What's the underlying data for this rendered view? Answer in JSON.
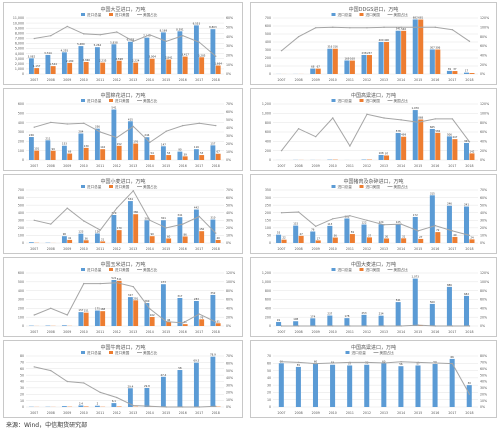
{
  "colors": {
    "bar_a": "#5b9bd5",
    "bar_b": "#ed7d31",
    "line": "#a5a5a5",
    "grid": "#e3e3e3",
    "text": "#555555"
  },
  "footer": {
    "text": "来源：Wind，中信期货研究部"
  },
  "chart_data": [
    {
      "type": "bar",
      "title": "中国大豆进口，万吨",
      "legend": [
        "进口总量",
        "进口美国",
        "美国占比"
      ],
      "categories": [
        "2007",
        "2008",
        "2009",
        "2010",
        "2011",
        "2012",
        "2013",
        "2014",
        "2015",
        "2016",
        "2017",
        "2018"
      ],
      "y_ticks": [
        "0",
        "1,000",
        "2,000",
        "3,000",
        "4,000",
        "5,000",
        "6,000",
        "7,000",
        "8,000",
        "9,000",
        "10,000",
        "11,000"
      ],
      "y2_ticks": [
        "0%",
        "10%",
        "20%",
        "30%",
        "40%",
        "50%",
        "60%"
      ],
      "ylim": [
        0,
        11000
      ],
      "y2lim": [
        0,
        0.6
      ],
      "series": [
        {
          "name": "进口总量",
          "values": [
            3082,
            3744,
            4255,
            5480,
            5264,
            5838,
            6338,
            7140,
            8169,
            8391,
            9553,
            8803
          ]
        },
        {
          "name": "进口美国",
          "values": [
            1157,
            1544,
            2180,
            2360,
            2235,
            2598,
            2224,
            3004,
            2841,
            3417,
            3285,
            1664
          ]
        },
        {
          "name": "美国占比",
          "values": [
            0.38,
            0.41,
            0.51,
            0.43,
            0.42,
            0.45,
            0.35,
            0.42,
            0.35,
            0.41,
            0.34,
            0.19
          ]
        }
      ]
    },
    {
      "type": "bar",
      "title": "中国DDGS进口，万吨",
      "legend": [
        "进口总量",
        "进口美国",
        "美国占比"
      ],
      "categories": [
        "2007",
        "2008",
        "2009",
        "2010",
        "2011",
        "2012",
        "2013",
        "2014",
        "2015",
        "2016",
        "2017",
        "2018"
      ],
      "y_ticks": [
        "0",
        "100",
        "200",
        "300",
        "400",
        "500",
        "600",
        "700"
      ],
      "y2_ticks": [
        "0%",
        "20%",
        "40%",
        "60%",
        "80%",
        "100%",
        "120%"
      ],
      "ylim": [
        0,
        700
      ],
      "y2lim": [
        0,
        1.2
      ],
      "series": [
        {
          "name": "进口总量",
          "values": [
            1,
            1,
            68,
            316,
            169,
            238,
            400,
            541,
            682,
            307,
            39,
            17
          ]
        },
        {
          "name": "进口美国",
          "values": [
            0.5,
            0.8,
            67,
            316,
            168,
            237,
            400,
            540,
            681,
            306,
            37,
            12
          ]
        },
        {
          "name": "美国占比",
          "values": [
            0.5,
            0.8,
            0.99,
            1.0,
            0.99,
            0.99,
            1.0,
            1.0,
            1.0,
            1.0,
            0.95,
            0.7
          ]
        }
      ]
    },
    {
      "type": "bar",
      "title": "中国棉花进口，万吨",
      "legend": [
        "进口总量",
        "进口美国",
        "美国占比"
      ],
      "categories": [
        "2007",
        "2008",
        "2009",
        "2010",
        "2011",
        "2012",
        "2013",
        "2014",
        "2015",
        "2016",
        "2017",
        "2018"
      ],
      "y_ticks": [
        "0",
        "100",
        "200",
        "300",
        "400",
        "500",
        "600"
      ],
      "y2_ticks": [
        "0%",
        "10%",
        "20%",
        "30%",
        "40%",
        "50%",
        "60%",
        "70%"
      ],
      "ylim": [
        0,
        600
      ],
      "y2lim": [
        0,
        0.7
      ],
      "series": [
        {
          "name": "进口总量",
          "values": [
            246,
            211,
            153,
            284,
            336,
            541,
            415,
            244,
            147,
            90,
            116,
            157
          ]
        },
        {
          "name": "进口美国",
          "values": [
            101,
            99,
            69,
            130,
            116,
            152,
            176,
            54,
            53,
            39,
            53,
            67
          ]
        },
        {
          "name": "美国占比",
          "values": [
            0.41,
            0.47,
            0.45,
            0.46,
            0.35,
            0.28,
            0.42,
            0.22,
            0.36,
            0.43,
            0.46,
            0.43
          ]
        }
      ]
    },
    {
      "type": "bar",
      "title": "中国高粱进口，万吨",
      "legend": [
        "进口总量",
        "进口美国",
        "美国占比"
      ],
      "categories": [
        "2007",
        "2008",
        "2009",
        "2010",
        "2011",
        "2012",
        "2013",
        "2014",
        "2015",
        "2016",
        "2017",
        "2018"
      ],
      "y_ticks": [
        "0",
        "200",
        "400",
        "600",
        "800",
        "1,000",
        "1,200"
      ],
      "y2_ticks": [
        "0%",
        "20%",
        "40%",
        "60%",
        "80%",
        "100%",
        "120%"
      ],
      "ylim": [
        0,
        1200
      ],
      "y2lim": [
        0,
        1.2
      ],
      "series": [
        {
          "name": "进口总量",
          "values": [
            1,
            3,
            2,
            8,
            1,
            9,
            108,
            578,
            1070,
            665,
            506,
            365
          ]
        },
        {
          "name": "进口美国",
          "values": [
            0,
            2,
            1,
            7,
            0,
            9,
            97,
            499,
            868,
            582,
            447,
            142
          ]
        },
        {
          "name": "美国占比",
          "values": [
            0.2,
            0.67,
            0.5,
            0.9,
            0.3,
            0.98,
            0.9,
            0.86,
            0.81,
            0.88,
            0.88,
            0.39
          ]
        }
      ]
    },
    {
      "type": "bar",
      "title": "中国小麦进口，万吨",
      "legend": [
        "进口总量",
        "进口美国",
        "美国占比"
      ],
      "categories": [
        "2007",
        "2008",
        "2009",
        "2010",
        "2011",
        "2012",
        "2013",
        "2014",
        "2015",
        "2016",
        "2017",
        "2018"
      ],
      "y_ticks": [
        "0",
        "100",
        "200",
        "300",
        "400",
        "500",
        "600",
        "700"
      ],
      "y2_ticks": [
        "0%",
        "10%",
        "20%",
        "30%",
        "40%",
        "50%",
        "60%",
        "70%"
      ],
      "ylim": [
        0,
        700
      ],
      "y2lim": [
        0,
        0.7
      ],
      "series": [
        {
          "name": "进口总量",
          "values": [
            10,
            4,
            90,
            123,
            126,
            370,
            554,
            300,
            301,
            341,
            442,
            310
          ]
        },
        {
          "name": "进口美国",
          "values": [
            3,
            1,
            41,
            36,
            21,
            170,
            380,
            90,
            60,
            86,
            156,
            40
          ]
        },
        {
          "name": "美国占比",
          "values": [
            0.3,
            0.25,
            0.46,
            0.29,
            0.17,
            0.46,
            0.69,
            0.3,
            0.2,
            0.25,
            0.35,
            0.13
          ]
        }
      ]
    },
    {
      "type": "bar",
      "title": "中国猪肉及杂碎进口，万吨",
      "legend": [
        "进口总量",
        "进口美国",
        "美国占比"
      ],
      "categories": [
        "2007",
        "2008",
        "2009",
        "2010",
        "2011",
        "2012",
        "2013",
        "2014",
        "2015",
        "2016",
        "2017",
        "2018"
      ],
      "y_ticks": [
        "0",
        "50",
        "100",
        "150",
        "200",
        "250",
        "300",
        "350"
      ],
      "y2_ticks": [
        "0%",
        "10%",
        "20%",
        "30%",
        "40%",
        "50%",
        "60%",
        "70%"
      ],
      "ylim": [
        0,
        350
      ],
      "y2lim": [
        0,
        0.7
      ],
      "series": [
        {
          "name": "进口总量",
          "values": [
            55,
            115,
            76,
            113,
            162,
            122,
            124,
            125,
            172,
            315,
            246,
            241
          ]
        },
        {
          "name": "进口美国",
          "values": [
            22,
            47,
            17,
            36,
            59,
            37,
            30,
            31,
            27,
            72,
            40,
            24
          ]
        },
        {
          "name": "美国占比",
          "values": [
            0.4,
            0.41,
            0.22,
            0.32,
            0.36,
            0.3,
            0.24,
            0.25,
            0.16,
            0.23,
            0.16,
            0.1
          ]
        }
      ]
    },
    {
      "type": "bar",
      "title": "中国玉米进口，万吨",
      "legend": [
        "进口总量",
        "进口美国",
        "美国占比"
      ],
      "categories": [
        "2007",
        "2008",
        "2009",
        "2010",
        "2011",
        "2012",
        "2013",
        "2014",
        "2015",
        "2016",
        "2017",
        "2018"
      ],
      "y_ticks": [
        "0",
        "100",
        "200",
        "300",
        "400",
        "500",
        "600"
      ],
      "y2_ticks": [
        "0%",
        "20%",
        "40%",
        "60%",
        "80%",
        "100%",
        "120%"
      ],
      "ylim": [
        0,
        600
      ],
      "y2lim": [
        0,
        1.2
      ],
      "series": [
        {
          "name": "进口总量",
          "values": [
            4,
            5,
            8,
            157,
            175,
            521,
            327,
            260,
            473,
            317,
            283,
            352
          ]
        },
        {
          "name": "进口美国",
          "values": [
            1,
            2,
            2,
            151,
            168,
            511,
            291,
            102,
            46,
            21,
            76,
            31
          ]
        },
        {
          "name": "美国占比",
          "values": [
            0.25,
            0.4,
            0.25,
            0.96,
            0.96,
            0.98,
            0.89,
            0.39,
            0.1,
            0.07,
            0.27,
            0.09
          ]
        }
      ]
    },
    {
      "type": "bar",
      "title": "中国大麦进口，万吨",
      "legend": [
        "进口总量",
        "进口美国",
        "美国占比"
      ],
      "categories": [
        "2007",
        "2008",
        "2009",
        "2010",
        "2011",
        "2012",
        "2013",
        "2014",
        "2015",
        "2016",
        "2017",
        "2018"
      ],
      "y_ticks": [
        "0",
        "200",
        "400",
        "600",
        "800",
        "1,000",
        "1,200"
      ],
      "y2_ticks": [
        "0%",
        "20%",
        "40%",
        "60%",
        "80%",
        "100%",
        "120%"
      ],
      "ylim": [
        0,
        1200
      ],
      "y2lim": [
        0,
        1.2
      ],
      "series": [
        {
          "name": "进口总量",
          "values": [
            91,
            108,
            174,
            237,
            178,
            253,
            234,
            541,
            1073,
            500,
            886,
            682
          ]
        },
        {
          "name": "进口美国",
          "values": [
            0,
            0,
            0,
            0,
            0,
            0,
            0,
            2,
            20,
            0,
            0,
            0
          ]
        },
        {
          "name": "美国占比",
          "values": [
            0,
            0,
            0,
            0,
            0,
            0,
            0,
            0,
            0.02,
            0,
            0,
            0
          ]
        }
      ]
    },
    {
      "type": "bar",
      "title": "中国牛肉进口，万吨",
      "legend": [
        "进口总量",
        "进口美国",
        "美国占比"
      ],
      "categories": [
        "2007",
        "2008",
        "2009",
        "2010",
        "2011",
        "2012",
        "2013",
        "2014",
        "2015",
        "2016",
        "2017",
        "2018"
      ],
      "y_ticks": [
        "0",
        "10",
        "20",
        "30",
        "40",
        "50",
        "60",
        "70",
        "80"
      ],
      "y2_ticks": [
        "0%",
        "10%",
        "20%",
        "30%",
        "40%",
        "50%",
        "60%",
        "70%"
      ],
      "ylim": [
        0,
        80
      ],
      "y2lim": [
        0,
        0.7
      ],
      "series": [
        {
          "name": "进口总量",
          "values": [
            0.4,
            0.4,
            1.4,
            2.4,
            2.0,
            6.1,
            29.4,
            29.8,
            47.4,
            58.0,
            69.5,
            78.9
          ]
        },
        {
          "name": "进口美国",
          "values": [
            0.2,
            0.2,
            0.5,
            0.8,
            0.4,
            0.8,
            0.5,
            0.3,
            0.2,
            0.1,
            0.2,
            0.6
          ]
        },
        {
          "name": "美国占比",
          "values": [
            0.55,
            0.5,
            0.35,
            0.33,
            0.2,
            0.13,
            0.02,
            0.01,
            0.0,
            0.0,
            0.0,
            0.01
          ]
        }
      ]
    },
    {
      "type": "bar",
      "title": "中国高粱进口，万吨",
      "legend": [
        "进口总量",
        "美国占比"
      ],
      "categories": [
        "2007",
        "2008",
        "2009",
        "2010",
        "2011",
        "2012",
        "2013",
        "2014",
        "2015",
        "2016",
        "2017",
        "2018"
      ],
      "y_ticks": [
        "0",
        "10",
        "20",
        "30",
        "40",
        "50",
        "60",
        "70"
      ],
      "y2_ticks": [
        "0%",
        "10%",
        "20%",
        "30%",
        "40%",
        "50%",
        "60%",
        "70%",
        "80%"
      ],
      "ylim": [
        0,
        70
      ],
      "y2lim": [
        0,
        0.8
      ],
      "series": [
        {
          "name": "进口总量",
          "values": [
            60,
            55,
            60,
            58,
            57,
            58,
            60,
            56,
            57,
            59,
            66,
            30
          ]
        },
        {
          "name": "美国占比",
          "values": [
            0.71,
            0.7,
            0.68,
            0.69,
            0.7,
            0.7,
            0.69,
            0.71,
            0.7,
            0.69,
            0.68,
            0.2
          ]
        }
      ]
    }
  ]
}
